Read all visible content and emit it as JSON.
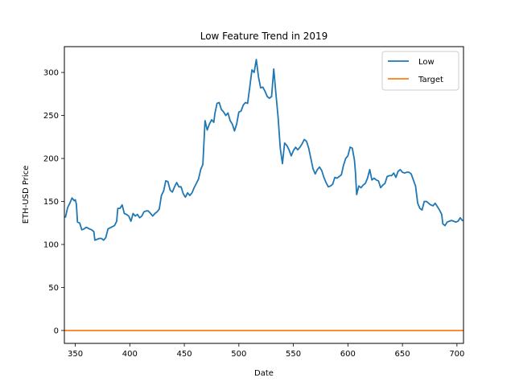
{
  "chart_data": {
    "type": "line",
    "title": "Low Feature Trend in 2019",
    "xlabel": "Date",
    "ylabel": "ETH-USD Price",
    "xlim": [
      340,
      706
    ],
    "ylim": [
      -15,
      330
    ],
    "xticks": [
      350,
      400,
      450,
      500,
      550,
      600,
      650,
      700
    ],
    "yticks": [
      0,
      50,
      100,
      150,
      200,
      250,
      300
    ],
    "grid": false,
    "legend_position": "top-right",
    "series": [
      {
        "name": "Low",
        "color": "#1f77b4",
        "points": [
          [
            341,
            132
          ],
          [
            343,
            143
          ],
          [
            345,
            148
          ],
          [
            347,
            154
          ],
          [
            349,
            151
          ],
          [
            350,
            152
          ],
          [
            351,
            147
          ],
          [
            352,
            126
          ],
          [
            354,
            125
          ],
          [
            356,
            117
          ],
          [
            358,
            118
          ],
          [
            360,
            120
          ],
          [
            363,
            118
          ],
          [
            365,
            117
          ],
          [
            367,
            115
          ],
          [
            368,
            105
          ],
          [
            370,
            106
          ],
          [
            372,
            107
          ],
          [
            374,
            107
          ],
          [
            376,
            105
          ],
          [
            378,
            108
          ],
          [
            380,
            118
          ],
          [
            383,
            120
          ],
          [
            386,
            122
          ],
          [
            388,
            127
          ],
          [
            389,
            142
          ],
          [
            391,
            142
          ],
          [
            393,
            146
          ],
          [
            395,
            136
          ],
          [
            397,
            135
          ],
          [
            399,
            133
          ],
          [
            401,
            127
          ],
          [
            403,
            136
          ],
          [
            405,
            133
          ],
          [
            407,
            135
          ],
          [
            409,
            131
          ],
          [
            411,
            133
          ],
          [
            413,
            138
          ],
          [
            415,
            139
          ],
          [
            417,
            139
          ],
          [
            419,
            136
          ],
          [
            421,
            133
          ],
          [
            423,
            136
          ],
          [
            425,
            138
          ],
          [
            427,
            141
          ],
          [
            429,
            157
          ],
          [
            431,
            162
          ],
          [
            433,
            174
          ],
          [
            435,
            173
          ],
          [
            437,
            163
          ],
          [
            439,
            161
          ],
          [
            441,
            167
          ],
          [
            443,
            172
          ],
          [
            445,
            167
          ],
          [
            447,
            167
          ],
          [
            449,
            159
          ],
          [
            451,
            155
          ],
          [
            453,
            160
          ],
          [
            455,
            157
          ],
          [
            457,
            160
          ],
          [
            459,
            166
          ],
          [
            461,
            171
          ],
          [
            463,
            176
          ],
          [
            465,
            187
          ],
          [
            467,
            193
          ],
          [
            469,
            244
          ],
          [
            471,
            233
          ],
          [
            473,
            240
          ],
          [
            475,
            245
          ],
          [
            477,
            242
          ],
          [
            478,
            252
          ],
          [
            480,
            264
          ],
          [
            482,
            265
          ],
          [
            484,
            257
          ],
          [
            486,
            254
          ],
          [
            488,
            250
          ],
          [
            490,
            253
          ],
          [
            492,
            244
          ],
          [
            494,
            240
          ],
          [
            496,
            232
          ],
          [
            498,
            240
          ],
          [
            500,
            254
          ],
          [
            502,
            255
          ],
          [
            504,
            262
          ],
          [
            506,
            265
          ],
          [
            508,
            264
          ],
          [
            510,
            283
          ],
          [
            512,
            303
          ],
          [
            514,
            300
          ],
          [
            516,
            315
          ],
          [
            518,
            295
          ],
          [
            520,
            282
          ],
          [
            522,
            283
          ],
          [
            524,
            278
          ],
          [
            526,
            272
          ],
          [
            528,
            270
          ],
          [
            530,
            272
          ],
          [
            532,
            304
          ],
          [
            534,
            275
          ],
          [
            536,
            248
          ],
          [
            538,
            212
          ],
          [
            540,
            194
          ],
          [
            542,
            218
          ],
          [
            544,
            215
          ],
          [
            546,
            210
          ],
          [
            548,
            203
          ],
          [
            550,
            209
          ],
          [
            552,
            213
          ],
          [
            554,
            210
          ],
          [
            556,
            213
          ],
          [
            558,
            217
          ],
          [
            560,
            222
          ],
          [
            562,
            220
          ],
          [
            564,
            212
          ],
          [
            566,
            200
          ],
          [
            568,
            188
          ],
          [
            570,
            182
          ],
          [
            572,
            187
          ],
          [
            574,
            190
          ],
          [
            576,
            186
          ],
          [
            578,
            178
          ],
          [
            580,
            172
          ],
          [
            582,
            167
          ],
          [
            584,
            168
          ],
          [
            586,
            170
          ],
          [
            588,
            178
          ],
          [
            590,
            177
          ],
          [
            592,
            179
          ],
          [
            594,
            181
          ],
          [
            596,
            192
          ],
          [
            598,
            200
          ],
          [
            600,
            203
          ],
          [
            602,
            213
          ],
          [
            604,
            212
          ],
          [
            606,
            198
          ],
          [
            607,
            183
          ],
          [
            608,
            158
          ],
          [
            610,
            168
          ],
          [
            612,
            166
          ],
          [
            614,
            169
          ],
          [
            616,
            171
          ],
          [
            618,
            177
          ],
          [
            620,
            187
          ],
          [
            622,
            175
          ],
          [
            624,
            177
          ],
          [
            626,
            175
          ],
          [
            628,
            174
          ],
          [
            630,
            166
          ],
          [
            632,
            169
          ],
          [
            634,
            171
          ],
          [
            636,
            179
          ],
          [
            638,
            180
          ],
          [
            640,
            180
          ],
          [
            642,
            183
          ],
          [
            644,
            178
          ],
          [
            646,
            185
          ],
          [
            648,
            187
          ],
          [
            650,
            184
          ],
          [
            652,
            183
          ],
          [
            654,
            184
          ],
          [
            656,
            184
          ],
          [
            658,
            182
          ],
          [
            660,
            175
          ],
          [
            662,
            168
          ],
          [
            664,
            148
          ],
          [
            666,
            142
          ],
          [
            668,
            140
          ],
          [
            670,
            150
          ],
          [
            672,
            150
          ],
          [
            674,
            148
          ],
          [
            676,
            146
          ],
          [
            678,
            145
          ],
          [
            680,
            148
          ],
          [
            682,
            144
          ],
          [
            684,
            140
          ],
          [
            686,
            135
          ],
          [
            687,
            124
          ],
          [
            689,
            122
          ],
          [
            691,
            126
          ],
          [
            693,
            127
          ],
          [
            695,
            128
          ],
          [
            697,
            127
          ],
          [
            699,
            126
          ],
          [
            701,
            127
          ],
          [
            703,
            131
          ],
          [
            705,
            128
          ]
        ]
      },
      {
        "name": "Target",
        "color": "#ff7f0e",
        "points": [
          [
            341,
            0
          ],
          [
            705,
            0
          ]
        ]
      }
    ]
  }
}
